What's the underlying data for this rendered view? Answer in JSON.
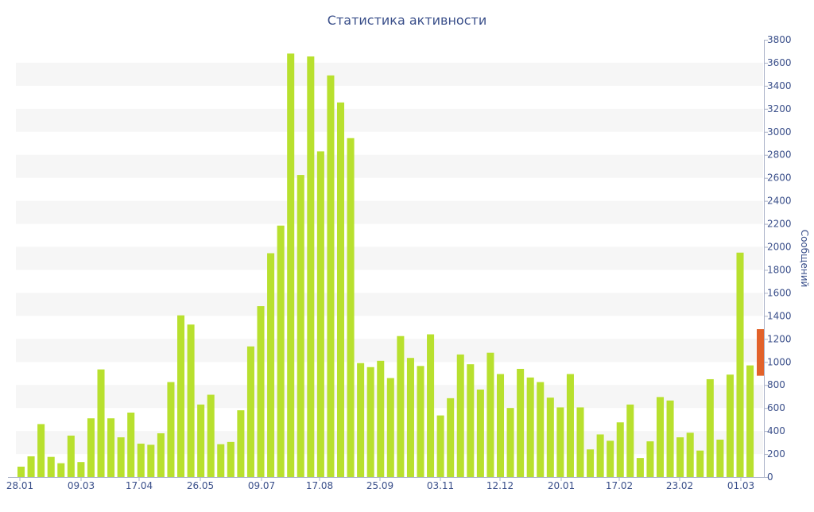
{
  "chart_data": {
    "type": "bar",
    "title": "Статистика активности",
    "ylabel": "Сообщений",
    "xlabel": "",
    "ylim": [
      0,
      3800
    ],
    "ytick_step": 200,
    "grid": "alternating horizontal bands",
    "xtick_labels": [
      "28.01",
      "09.03",
      "17.04",
      "26.05",
      "09.07",
      "17.08",
      "25.09",
      "03.11",
      "12.12",
      "20.01",
      "17.02",
      "23.02",
      "01.03"
    ],
    "values": [
      90,
      180,
      460,
      175,
      120,
      360,
      130,
      510,
      935,
      510,
      345,
      560,
      290,
      280,
      380,
      825,
      1405,
      1325,
      630,
      715,
      285,
      305,
      580,
      1135,
      1485,
      1945,
      2185,
      3680,
      2625,
      3655,
      2830,
      3490,
      3255,
      2945,
      990,
      955,
      1010,
      860,
      1225,
      1035,
      965,
      1240,
      535,
      685,
      1065,
      980,
      760,
      1080,
      895,
      600,
      940,
      865,
      825,
      690,
      605,
      895,
      605,
      240,
      370,
      315,
      475,
      630,
      165,
      310,
      695,
      665,
      345,
      385,
      230,
      850,
      325,
      890,
      1950,
      970
    ],
    "highlight": {
      "base": 880,
      "top": 1285
    },
    "colors": {
      "bar": "#b8e02e",
      "highlight": "#e2622a",
      "band": "#f6f6f6",
      "text": "#3a4f8a",
      "axis": "#aab2c8"
    }
  }
}
